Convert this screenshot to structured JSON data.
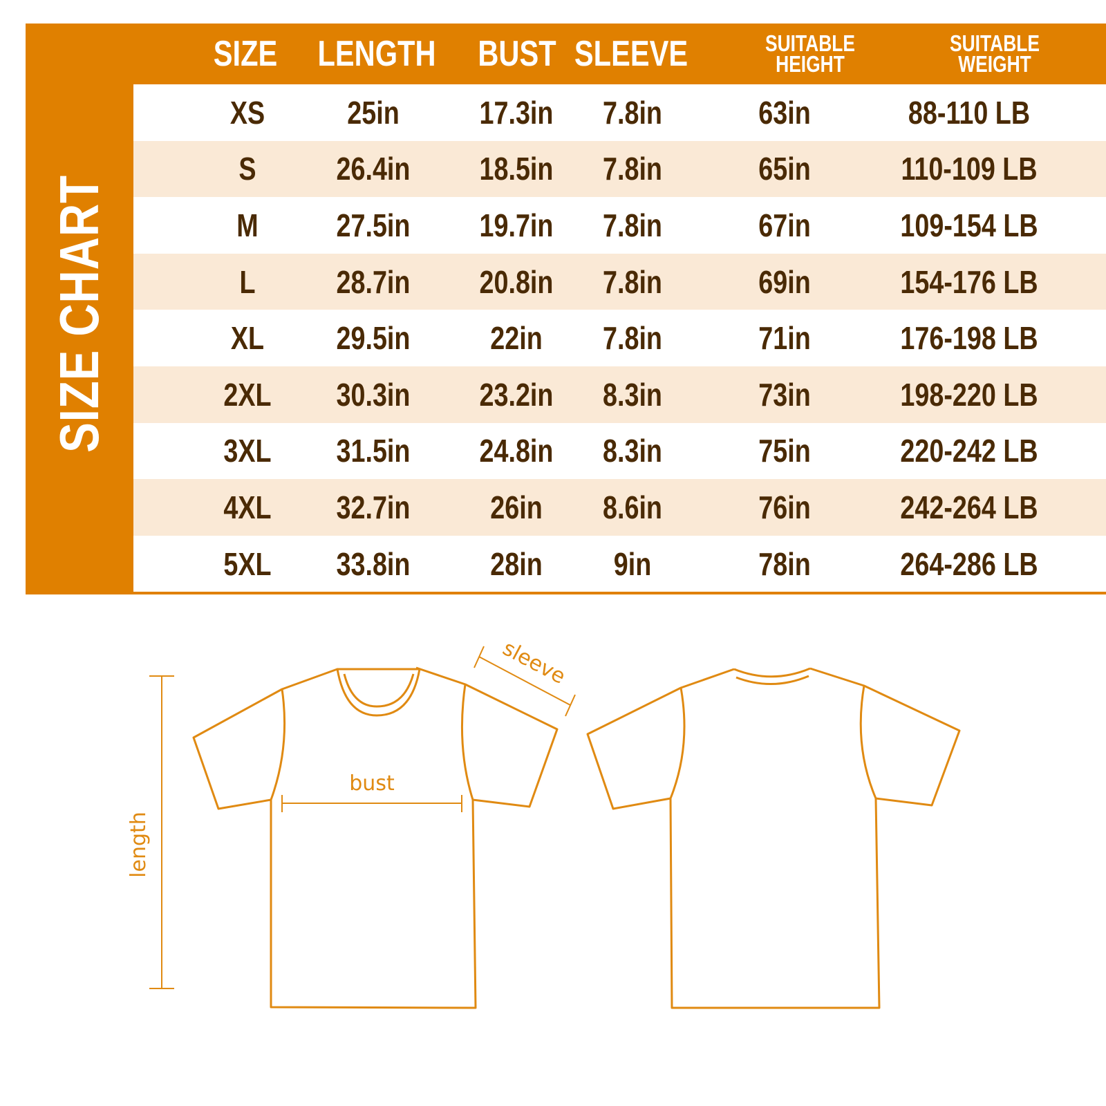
{
  "title": "SIZE CHART",
  "colors": {
    "accent": "#E08000",
    "text": "#4A2A05",
    "stripe": "#FAE9D6"
  },
  "columns": [
    "SIZE",
    "LENGTH",
    "BUST",
    "SLEEVE",
    "SUITABLE HEIGHT",
    "SUITABLE WEIGHT"
  ],
  "rows": [
    [
      "XS",
      "25in",
      "17.3in",
      "7.8in",
      "63in",
      "88-110 LB"
    ],
    [
      "S",
      "26.4in",
      "18.5in",
      "7.8in",
      "65in",
      "110-109 LB"
    ],
    [
      "M",
      "27.5in",
      "19.7in",
      "7.8in",
      "67in",
      "109-154 LB"
    ],
    [
      "L",
      "28.7in",
      "20.8in",
      "7.8in",
      "69in",
      "154-176 LB"
    ],
    [
      "XL",
      "29.5in",
      "22in",
      "7.8in",
      "71in",
      "176-198 LB"
    ],
    [
      "2XL",
      "30.3in",
      "23.2in",
      "8.3in",
      "73in",
      "198-220 LB"
    ],
    [
      "3XL",
      "31.5in",
      "24.8in",
      "8.3in",
      "75in",
      "220-242 LB"
    ],
    [
      "4XL",
      "32.7in",
      "26in",
      "8.6in",
      "76in",
      "242-264 LB"
    ],
    [
      "5XL",
      "33.8in",
      "28in",
      "9in",
      "78in",
      "264-286 LB"
    ]
  ],
  "diagram": {
    "sleeve": "sleeve",
    "bust": "bust",
    "length": "length"
  }
}
